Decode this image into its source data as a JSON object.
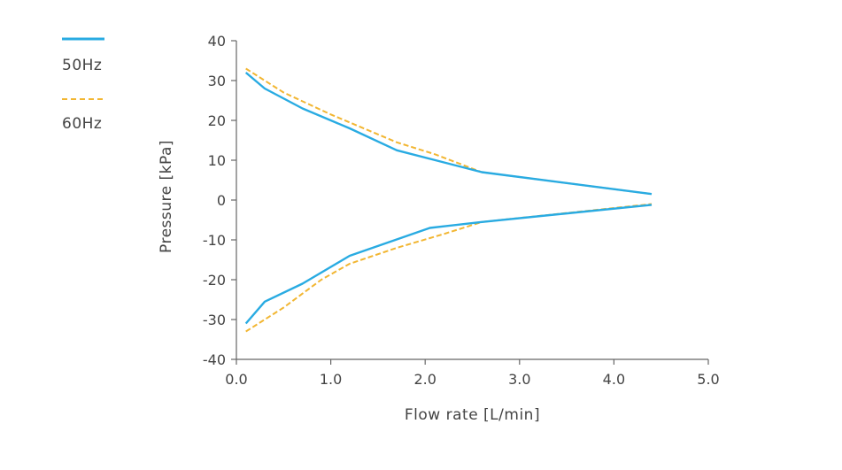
{
  "chart_data": {
    "type": "line",
    "title": "",
    "xlabel": "Flow rate [L/min]",
    "ylabel": "Pressure [kPa]",
    "xlim": [
      0,
      5
    ],
    "ylim": [
      -40,
      40
    ],
    "xticks": [
      "0.0",
      "1.0",
      "2.0",
      "3.0",
      "4.0",
      "5.0"
    ],
    "yticks": [
      "40",
      "30",
      "20",
      "10",
      "0",
      "-10",
      "-20",
      "-30",
      "-40"
    ],
    "grid": false,
    "legend_position": "top-left",
    "series": [
      {
        "name": "50Hz",
        "style": "solid",
        "color": "#29ABE2",
        "segments": [
          {
            "x": [
              0.1,
              0.3,
              0.7,
              1.2,
              1.7,
              2.6,
              4.4
            ],
            "y": [
              32,
              28,
              23,
              18,
              12.5,
              7,
              1.5
            ]
          },
          {
            "x": [
              0.1,
              0.3,
              0.7,
              1.2,
              2.05,
              2.6,
              4.4
            ],
            "y": [
              -31,
              -25.5,
              -21,
              -14,
              -7,
              -5.5,
              -1.2
            ]
          }
        ]
      },
      {
        "name": "60Hz",
        "style": "dashed",
        "color": "#F2B632",
        "segments": [
          {
            "x": [
              0.1,
              0.3,
              0.5,
              1.0,
              1.7,
              2.1,
              2.6,
              4.4
            ],
            "y": [
              33,
              30,
              27,
              21.5,
              14.5,
              11.5,
              7,
              1.5
            ]
          },
          {
            "x": [
              0.1,
              0.5,
              0.9,
              1.2,
              1.7,
              2.2,
              2.6,
              4.4
            ],
            "y": [
              -33,
              -27,
              -20,
              -16,
              -12,
              -8.5,
              -5.5,
              -1
            ]
          }
        ]
      }
    ]
  }
}
